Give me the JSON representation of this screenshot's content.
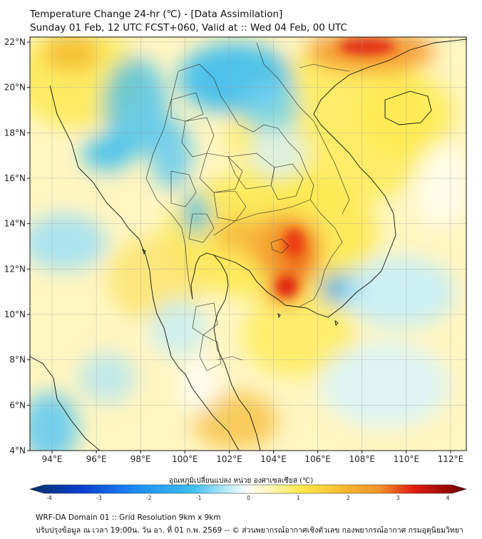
{
  "header": {
    "title": "Temperature Change 24-hr (℃) - [Data Assimilation]",
    "subtitle": "Sunday 01 Feb, 12 UTC FCST+060, Valid at :: Wed 04 Feb, 00 UTC"
  },
  "map": {
    "lat_ticks": [
      "22°N",
      "20°N",
      "18°N",
      "16°N",
      "14°N",
      "12°N",
      "10°N",
      "8°N",
      "6°N",
      "4°N"
    ],
    "lon_ticks": [
      "94°E",
      "96°E",
      "98°E",
      "100°E",
      "102°E",
      "104°E",
      "106°E",
      "108°E",
      "110°E",
      "112°E"
    ]
  },
  "colorbar": {
    "label": "อุณหภูมิเปลี่ยนแปลง หน่วย องศาเซลเซียส (℃)",
    "ticks": [
      "-4",
      "-3",
      "-2",
      "-1",
      "0",
      "1",
      "2",
      "3",
      "4"
    ]
  },
  "footer": {
    "line1": "WRF-DA Domain 01 :: Grid Resolution 9km x 9km",
    "line2": "ปรับปรุงข้อมูล ณ เวลา 19:00น. วัน อา. ที่ 01 ก.พ. 2569 -- © ส่วนพยากรณ์อากาศเชิงตัวเลข กองพยากรณ์อากาศ กรมอุตุนิยมวิทยา"
  },
  "colors": {
    "deep_blue": "#08306b",
    "cyan": "#3bbdf0",
    "light_cyan": "#c4eef9",
    "white": "#ffffff",
    "yellow": "#fde94a",
    "orange": "#f5952a",
    "red": "#e01c0e",
    "dark_red": "#6b0000"
  }
}
